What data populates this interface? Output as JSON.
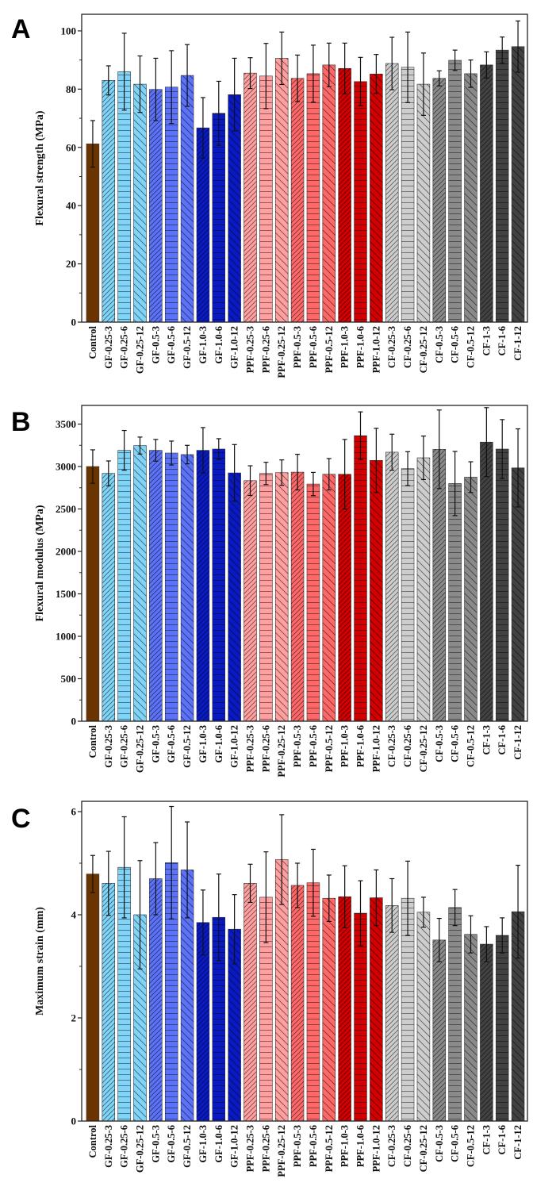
{
  "colors": {
    "Control": "#6b3300",
    "GF-0.25": "#80d4f8",
    "GF-0.5": "#5c72f8",
    "GF-1.0": "#0a1ac2",
    "PPF-0.25": "#ff9f9f",
    "PPF-0.5": "#ff6868",
    "PPF-1.0": "#d20000",
    "CF-0.25": "#cdcdcd",
    "CF-0.5": "#8a8a8a",
    "CF-1": "#424242"
  },
  "hatch_by_length": {
    "3": "forward-diagonal",
    "6": "horizontal",
    "12": "back-diagonal",
    "Control": "solid"
  },
  "chart_data": [
    {
      "panel": "A",
      "type": "bar",
      "ylabel": "Flexural strength (MPa)",
      "ylim": [
        0,
        105.7
      ],
      "yticks": [
        0,
        20,
        40,
        60,
        80,
        100
      ],
      "error_bars": true,
      "categories": [
        "Control",
        "GF-0.25-3",
        "GF-0.25-6",
        "GF-0.25-12",
        "GF-0.5-3",
        "GF-0.5-6",
        "GF-0.5-12",
        "GF-1.0-3",
        "GF-1.0-6",
        "GF-1.0-12",
        "PPF-0.25-3",
        "PPF-0.25-6",
        "PPF-0.25-12",
        "PPF-0.5-3",
        "PPF-0.5-6",
        "PPF-0.5-12",
        "PPF-1.0-3",
        "PPF-1.0-6",
        "PPF-1.0-12",
        "CF-0.25-3",
        "CF-0.25-6",
        "CF-0.25-12",
        "CF-0.5-3",
        "CF-0.5-6",
        "CF-0.5-12",
        "CF-1-3",
        "CF-1-6",
        "CF-1-12"
      ],
      "values": [
        61.2,
        83.0,
        86.0,
        81.7,
        79.9,
        80.7,
        84.7,
        66.7,
        71.7,
        78.1,
        85.5,
        84.5,
        90.6,
        83.7,
        85.3,
        88.3,
        87.1,
        82.6,
        85.2,
        88.8,
        87.5,
        81.7,
        83.7,
        89.9,
        85.3,
        88.3,
        93.4,
        94.6
      ],
      "errors": [
        8.0,
        5.0,
        13.2,
        9.7,
        10.7,
        12.5,
        10.6,
        10.4,
        11.0,
        12.5,
        5.3,
        11.2,
        9.0,
        8.0,
        9.8,
        7.5,
        8.7,
        8.3,
        6.7,
        9.0,
        12.1,
        10.7,
        2.6,
        3.5,
        4.7,
        4.5,
        4.5,
        8.8
      ]
    },
    {
      "panel": "B",
      "type": "bar",
      "ylabel": "Flexural modulus (MPa)",
      "ylim": [
        0,
        3720
      ],
      "yticks": [
        0,
        500,
        1000,
        1500,
        2000,
        2500,
        3000,
        3500
      ],
      "error_bars": true,
      "categories": [
        "Control",
        "GF-0.25-3",
        "GF-0.25-6",
        "GF-0.25-12",
        "GF-0.5-3",
        "GF-0.5-6",
        "GF-0.5-12",
        "GF-1.0-3",
        "GF-1.0-6",
        "GF-1.0-12",
        "PPF-0.25-3",
        "PPF-0.25-6",
        "PPF-0.25-12",
        "PPF-0.5-3",
        "PPF-0.5-6",
        "PPF-0.5-12",
        "PPF-1.0-3",
        "PPF-1.0-6",
        "PPF-1.0-12",
        "CF-0.25-3",
        "CF-0.25-6",
        "CF-0.25-12",
        "CF-0.5-3",
        "CF-0.5-6",
        "CF-0.5-12",
        "CF-1-3",
        "CF-1-6",
        "CF-1-12"
      ],
      "values": [
        3000,
        2919,
        3191,
        3247,
        3191,
        3159,
        3141,
        3191,
        3206,
        2925,
        2834,
        2919,
        2928,
        2934,
        2794,
        2909,
        2909,
        3363,
        3072,
        3169,
        2975,
        3103,
        3203,
        2800,
        2875,
        3288,
        3206,
        2984
      ],
      "errors": [
        197,
        147,
        234,
        100,
        128,
        141,
        109,
        268,
        122,
        334,
        175,
        131,
        150,
        210,
        137,
        185,
        410,
        281,
        378,
        212,
        200,
        256,
        463,
        378,
        181,
        406,
        347,
        460
      ]
    },
    {
      "panel": "C",
      "type": "bar",
      "ylabel": "Maximum strain (mm)",
      "ylim": [
        0,
        6.2
      ],
      "yticks": [
        0,
        2,
        4,
        6
      ],
      "error_bars": true,
      "categories": [
        "Control",
        "GF-0.25-3",
        "GF-0.25-6",
        "GF-0.25-12",
        "GF-0.5-3",
        "GF-0.5-6",
        "GF-0.5-12",
        "GF-1.0-3",
        "GF-1.0-6",
        "GF-1.0-12",
        "PPF-0.25-3",
        "PPF-0.25-6",
        "PPF-0.25-12",
        "PPF-0.5-3",
        "PPF-0.5-6",
        "PPF-0.5-12",
        "PPF-1.0-3",
        "PPF-1.0-6",
        "PPF-1.0-12",
        "CF-0.25-3",
        "CF-0.25-6",
        "CF-0.25-12",
        "CF-0.5-3",
        "CF-0.5-6",
        "CF-0.5-12",
        "CF-1-3",
        "CF-1-6",
        "CF-1-12"
      ],
      "values": [
        4.79,
        4.61,
        4.92,
        4.0,
        4.7,
        5.01,
        4.87,
        3.85,
        3.95,
        3.72,
        4.61,
        4.34,
        5.07,
        4.57,
        4.62,
        4.32,
        4.35,
        4.03,
        4.33,
        4.18,
        4.32,
        4.05,
        3.51,
        4.14,
        3.62,
        3.43,
        3.6,
        4.06
      ],
      "errors": [
        0.36,
        0.62,
        0.98,
        1.05,
        0.7,
        1.09,
        0.93,
        0.63,
        0.84,
        0.67,
        0.37,
        0.88,
        0.87,
        0.43,
        0.65,
        0.45,
        0.6,
        0.63,
        0.54,
        0.52,
        0.72,
        0.29,
        0.42,
        0.35,
        0.36,
        0.34,
        0.34,
        0.9
      ]
    }
  ]
}
